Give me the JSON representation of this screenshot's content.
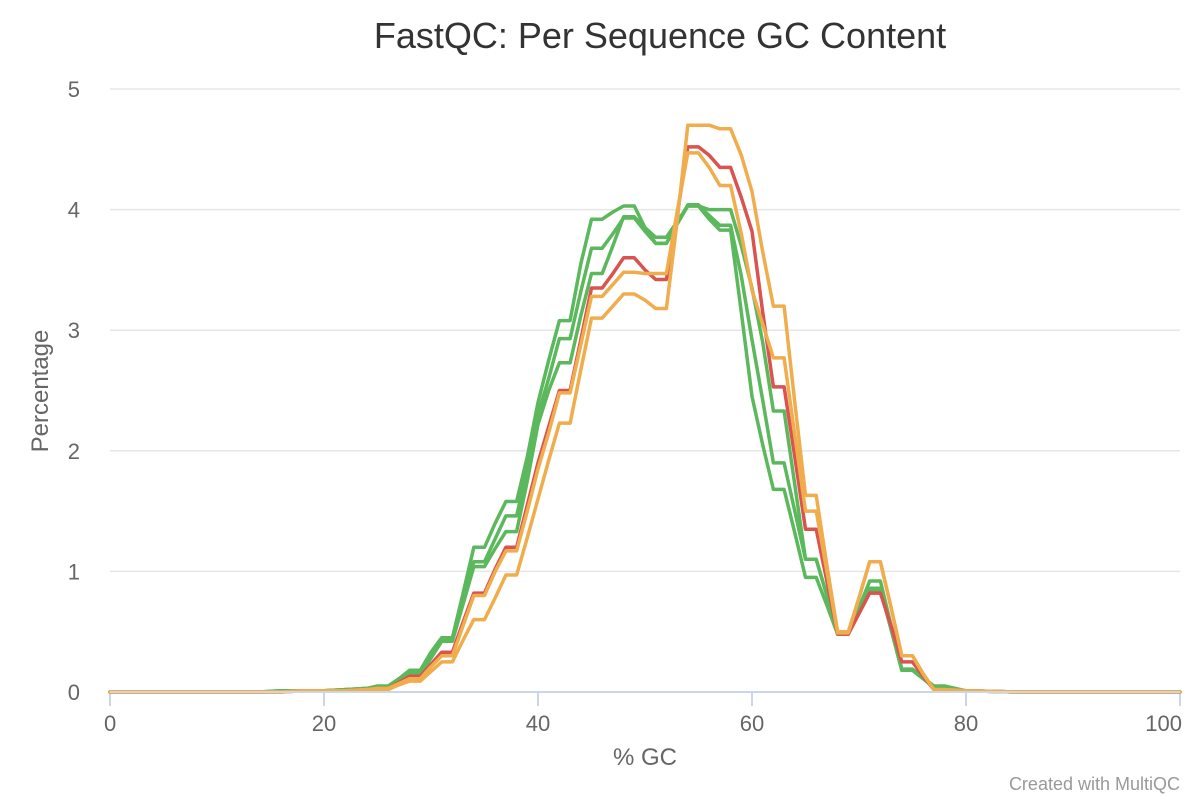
{
  "chart_data": {
    "type": "line",
    "title": "FastQC: Per Sequence GC Content",
    "xlabel": "% GC",
    "ylabel": "Percentage",
    "xlim": [
      0,
      100
    ],
    "ylim": [
      0,
      5
    ],
    "x_ticks": [
      0,
      20,
      40,
      60,
      80,
      100
    ],
    "y_ticks": [
      0,
      1,
      2,
      3,
      4,
      5
    ],
    "grid": true,
    "credit": "Created with MultiQC",
    "x": [
      0,
      2,
      4,
      6,
      8,
      10,
      12,
      14,
      16,
      18,
      20,
      22,
      24,
      25,
      26,
      27,
      28,
      29,
      30,
      31,
      32,
      33,
      34,
      35,
      36,
      37,
      38,
      39,
      40,
      41,
      42,
      43,
      44,
      45,
      46,
      47,
      48,
      49,
      50,
      51,
      52,
      53,
      54,
      55,
      56,
      57,
      58,
      59,
      60,
      61,
      62,
      63,
      64,
      65,
      66,
      67,
      68,
      69,
      70,
      71,
      72,
      73,
      74,
      75,
      76,
      77,
      78,
      80,
      85,
      90,
      95,
      100
    ],
    "series": [
      {
        "color": "#5cb85c",
        "values": [
          0,
          0,
          0,
          0,
          0,
          0,
          0,
          0,
          0.01,
          0.01,
          0.01,
          0.02,
          0.03,
          0.05,
          0.05,
          0.11,
          0.18,
          0.18,
          0.33,
          0.45,
          0.45,
          0.82,
          1.2,
          1.2,
          1.4,
          1.58,
          1.58,
          1.95,
          2.4,
          2.75,
          3.08,
          3.08,
          3.55,
          3.92,
          3.92,
          3.98,
          4.03,
          4.03,
          3.85,
          3.72,
          3.72,
          3.88,
          4.03,
          4.03,
          4.0,
          4.0,
          4.0,
          3.7,
          3.35,
          2.9,
          2.33,
          2.33,
          1.72,
          1.1,
          1.1,
          0.8,
          0.48,
          0.48,
          0.7,
          0.92,
          0.92,
          0.55,
          0.19,
          0.19,
          0.12,
          0.05,
          0.05,
          0.01,
          0,
          0,
          0,
          0
        ]
      },
      {
        "color": "#5cb85c",
        "values": [
          0,
          0,
          0,
          0,
          0,
          0,
          0,
          0,
          0.01,
          0.01,
          0.01,
          0.02,
          0.03,
          0.04,
          0.04,
          0.1,
          0.16,
          0.16,
          0.3,
          0.43,
          0.43,
          0.76,
          1.08,
          1.08,
          1.27,
          1.46,
          1.46,
          1.85,
          2.3,
          2.6,
          2.93,
          2.93,
          3.32,
          3.68,
          3.68,
          3.8,
          3.93,
          3.93,
          3.82,
          3.72,
          3.72,
          3.88,
          4.04,
          4.04,
          3.95,
          3.87,
          3.87,
          3.45,
          2.92,
          2.42,
          1.9,
          1.9,
          1.5,
          1.1,
          1.1,
          0.8,
          0.48,
          0.48,
          0.67,
          0.86,
          0.86,
          0.52,
          0.18,
          0.18,
          0.11,
          0.04,
          0.04,
          0.01,
          0,
          0,
          0,
          0
        ]
      },
      {
        "color": "#5cb85c",
        "values": [
          0,
          0,
          0,
          0,
          0,
          0,
          0,
          0,
          0.01,
          0.01,
          0.01,
          0.02,
          0.03,
          0.04,
          0.04,
          0.09,
          0.15,
          0.15,
          0.28,
          0.42,
          0.42,
          0.73,
          1.04,
          1.04,
          1.19,
          1.33,
          1.33,
          1.75,
          2.22,
          2.5,
          2.73,
          2.73,
          3.12,
          3.47,
          3.47,
          3.7,
          3.94,
          3.94,
          3.85,
          3.77,
          3.77,
          3.9,
          4.03,
          4.03,
          3.92,
          3.83,
          3.83,
          3.15,
          2.45,
          2.05,
          1.68,
          1.68,
          1.32,
          0.95,
          0.95,
          0.72,
          0.48,
          0.48,
          0.66,
          0.84,
          0.84,
          0.52,
          0.18,
          0.18,
          0.11,
          0.04,
          0.04,
          0.01,
          0,
          0,
          0,
          0
        ]
      },
      {
        "color": "#d9534f",
        "values": [
          0,
          0,
          0,
          0,
          0,
          0,
          0,
          0,
          0,
          0.01,
          0.01,
          0.01,
          0.02,
          0.03,
          0.03,
          0.08,
          0.13,
          0.13,
          0.23,
          0.33,
          0.33,
          0.58,
          0.82,
          0.82,
          1.02,
          1.2,
          1.2,
          1.55,
          1.9,
          2.2,
          2.5,
          2.5,
          2.92,
          3.35,
          3.35,
          3.47,
          3.6,
          3.6,
          3.5,
          3.42,
          3.42,
          3.95,
          4.52,
          4.52,
          4.45,
          4.35,
          4.35,
          4.1,
          3.82,
          3.15,
          2.53,
          2.53,
          1.95,
          1.35,
          1.35,
          0.92,
          0.48,
          0.48,
          0.65,
          0.82,
          0.82,
          0.55,
          0.25,
          0.25,
          0.13,
          0.02,
          0.02,
          0.01,
          0,
          0,
          0,
          0
        ]
      },
      {
        "color": "#f0ad4e",
        "values": [
          0,
          0,
          0,
          0,
          0,
          0,
          0,
          0,
          0,
          0.01,
          0.01,
          0.01,
          0.02,
          0.03,
          0.03,
          0.07,
          0.11,
          0.11,
          0.21,
          0.3,
          0.3,
          0.55,
          0.8,
          0.8,
          1.0,
          1.17,
          1.17,
          1.5,
          1.85,
          2.15,
          2.48,
          2.48,
          2.88,
          3.28,
          3.28,
          3.38,
          3.48,
          3.48,
          3.47,
          3.47,
          3.47,
          3.98,
          4.47,
          4.47,
          4.35,
          4.2,
          4.2,
          3.8,
          3.33,
          3.05,
          2.77,
          2.77,
          2.13,
          1.5,
          1.5,
          1.0,
          0.49,
          0.49,
          0.78,
          1.08,
          1.08,
          0.7,
          0.3,
          0.3,
          0.15,
          0.02,
          0.02,
          0.01,
          0,
          0,
          0,
          0
        ]
      },
      {
        "color": "#f0ad4e",
        "values": [
          0,
          0,
          0,
          0,
          0,
          0,
          0,
          0,
          0,
          0.01,
          0.01,
          0.01,
          0.02,
          0.02,
          0.02,
          0.06,
          0.09,
          0.09,
          0.17,
          0.25,
          0.25,
          0.43,
          0.6,
          0.6,
          0.78,
          0.97,
          0.97,
          1.28,
          1.6,
          1.92,
          2.23,
          2.23,
          2.67,
          3.1,
          3.1,
          3.2,
          3.3,
          3.3,
          3.25,
          3.18,
          3.18,
          3.9,
          4.7,
          4.7,
          4.7,
          4.67,
          4.67,
          4.45,
          4.15,
          3.65,
          3.2,
          3.2,
          2.4,
          1.63,
          1.63,
          1.05,
          0.5,
          0.5,
          0.78,
          1.08,
          1.08,
          0.7,
          0.3,
          0.3,
          0.15,
          0.02,
          0.02,
          0.01,
          0,
          0,
          0,
          0
        ]
      }
    ]
  }
}
